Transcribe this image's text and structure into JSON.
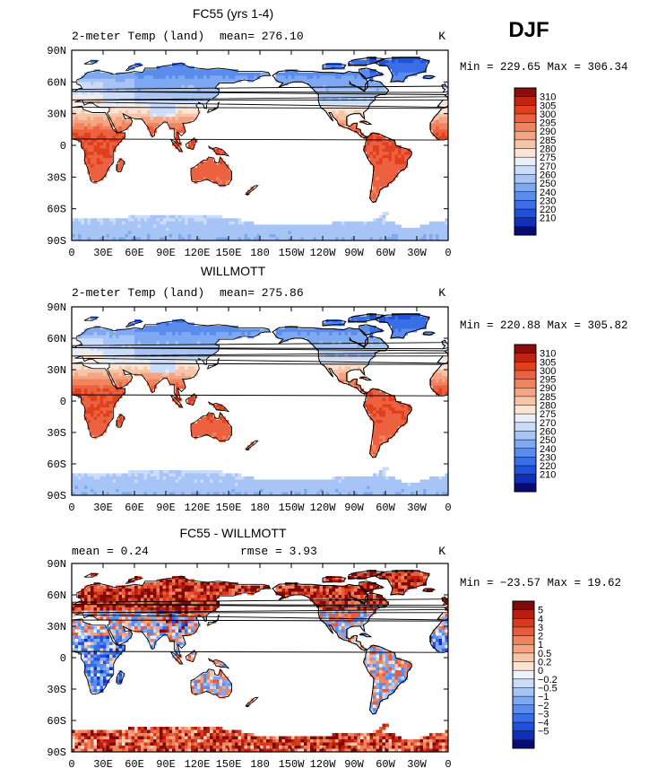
{
  "page_title": "DJF",
  "colors": {
    "ocean": "#ffffff",
    "coast": "#000000",
    "temp_scale": [
      "#0a0a74",
      "#1030b8",
      "#2050dc",
      "#3a6ee6",
      "#5a8cee",
      "#7ea8f2",
      "#a6c4f6",
      "#cadcfa",
      "#e8eff9",
      "#fbe4d4",
      "#f6c4a6",
      "#f4a482",
      "#f0845e",
      "#ec6240",
      "#e0401e",
      "#c02410",
      "#8a0c0c"
    ],
    "diff_scale": [
      "#0a0a74",
      "#1030b8",
      "#2050dc",
      "#3a6ee6",
      "#5a8cee",
      "#7ea8f2",
      "#a6c4f6",
      "#cadcfa",
      "#eef2fa",
      "#fbe4d4",
      "#f6c4a6",
      "#f4a482",
      "#f0845e",
      "#e85c3a",
      "#d83a1c",
      "#b81e10",
      "#800808"
    ]
  },
  "chart_data": [
    {
      "type": "heatmap",
      "title": "FC55 (yrs 1-4)",
      "left_label": "2-meter Temp (land)",
      "center_label": "mean= 276.10",
      "right_label": "K",
      "x_ticks": [
        "0",
        "30E",
        "60E",
        "90E",
        "120E",
        "150E",
        "180",
        "150W",
        "120W",
        "90W",
        "60W",
        "30W",
        "0"
      ],
      "y_ticks": [
        "90N",
        "60N",
        "30N",
        "0",
        "30S",
        "60S",
        "90S"
      ],
      "stats": "Min = 229.65 Max = 306.34",
      "min": 229.65,
      "max": 306.34,
      "mean": 276.1,
      "colorbar_labels": [
        "310",
        "305",
        "300",
        "295",
        "290",
        "285",
        "280",
        "275",
        "270",
        "260",
        "250",
        "240",
        "230",
        "220",
        "210"
      ]
    },
    {
      "type": "heatmap",
      "title": "WILLMOTT",
      "left_label": "2-meter Temp (land)",
      "center_label": "mean= 275.86",
      "right_label": "K",
      "x_ticks": [
        "0",
        "30E",
        "60E",
        "90E",
        "120E",
        "150E",
        "180",
        "150W",
        "120W",
        "90W",
        "60W",
        "30W",
        "0"
      ],
      "y_ticks": [
        "90N",
        "60N",
        "30N",
        "0",
        "30S",
        "60S",
        "90S"
      ],
      "stats": "Min = 220.88 Max = 305.82",
      "min": 220.88,
      "max": 305.82,
      "mean": 275.86,
      "colorbar_labels": [
        "310",
        "305",
        "300",
        "295",
        "290",
        "285",
        "280",
        "275",
        "270",
        "260",
        "250",
        "240",
        "230",
        "220",
        "210"
      ]
    },
    {
      "type": "heatmap",
      "title": "FC55 - WILLMOTT",
      "left_label": "mean = 0.24",
      "center_label": "rmse = 3.93",
      "right_label": "K",
      "x_ticks": [
        "0",
        "30E",
        "60E",
        "90E",
        "120E",
        "150E",
        "180",
        "150W",
        "120W",
        "90W",
        "60W",
        "30W",
        "0"
      ],
      "y_ticks": [
        "90N",
        "60N",
        "30N",
        "0",
        "30S",
        "60S",
        "90S"
      ],
      "stats": "Min = −23.57 Max = 19.62",
      "min": -23.57,
      "max": 19.62,
      "mean": 0.24,
      "rmse": 3.93,
      "colorbar_labels": [
        "5",
        "4",
        "3",
        "2",
        "1",
        "0.5",
        "0.2",
        "0",
        "−0.2",
        "−0.5",
        "−1",
        "−2",
        "−3",
        "−4",
        "−5"
      ]
    }
  ]
}
